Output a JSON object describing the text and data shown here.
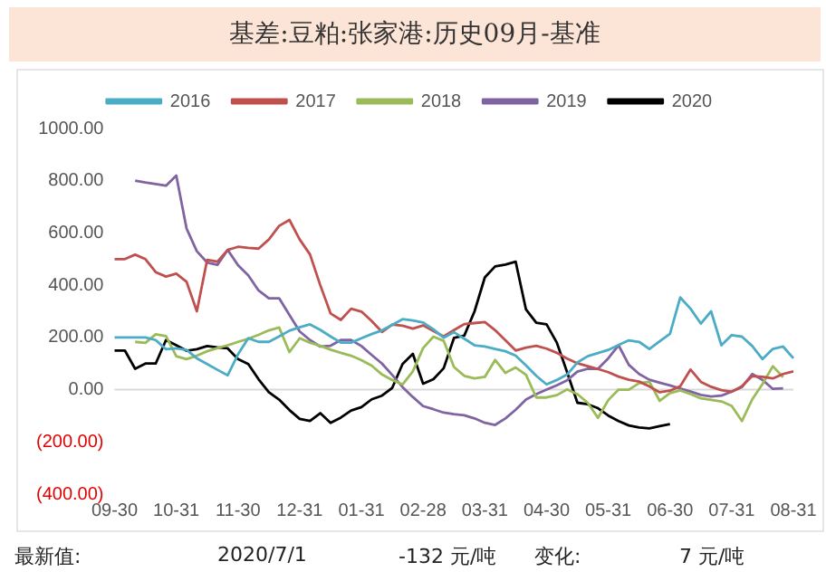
{
  "chart_data": {
    "type": "line",
    "title": "基差:豆粕:张家港:历史09月-基准",
    "categories": [
      "09-30",
      null,
      null,
      null,
      null,
      null,
      "10-31",
      null,
      null,
      null,
      null,
      null,
      "11-30",
      null,
      null,
      null,
      null,
      null,
      "12-31",
      null,
      null,
      null,
      null,
      null,
      "01-31",
      null,
      null,
      null,
      null,
      null,
      "02-28",
      null,
      null,
      null,
      null,
      null,
      "03-31",
      null,
      null,
      null,
      null,
      null,
      "04-30",
      null,
      null,
      null,
      null,
      null,
      "05-31",
      null,
      null,
      null,
      null,
      null,
      "06-30",
      null,
      null,
      null,
      null,
      null,
      "07-31",
      null,
      null,
      null,
      null,
      null,
      "08-31"
    ],
    "ylim": [
      -400,
      1000
    ],
    "yticks": [
      {
        "value": -400,
        "label": "(400.00)"
      },
      {
        "value": -200,
        "label": "(200.00)"
      },
      {
        "value": 0,
        "label": "0.00"
      },
      {
        "value": 200,
        "label": "200.00"
      },
      {
        "value": 400,
        "label": "400.00"
      },
      {
        "value": 600,
        "label": "600.00"
      },
      {
        "value": 800,
        "label": "800.00"
      },
      {
        "value": 1000,
        "label": "1000.00"
      }
    ],
    "grid": false,
    "legend": "top",
    "marker": "none",
    "line_style": "solid",
    "ref_lines": [
      {
        "axis": "y",
        "value": 0,
        "color": "#d9d9d9"
      }
    ],
    "annotations": [
      "最新值:",
      "2020/7/1",
      "-132 元/吨",
      "变化:",
      "7 元/吨"
    ],
    "series": [
      {
        "name": "2016",
        "color": "#4bacc6",
        "values": [
          200,
          200,
          200,
          200,
          190,
          155,
          158,
          152,
          120,
          98,
          76,
          55,
          135,
          197,
          183,
          183,
          204,
          226,
          239,
          250,
          229,
          204,
          180,
          180,
          197,
          213,
          227,
          248,
          270,
          265,
          257,
          231,
          199,
          220,
          195,
          170,
          165,
          156,
          147,
          130,
          93,
          53,
          20,
          37,
          58,
          104,
          128,
          140,
          152,
          171,
          189,
          183,
          156,
          185,
          214,
          353,
          310,
          253,
          300,
          170,
          209,
          203,
          167,
          117,
          156,
          165,
          120
        ]
      },
      {
        "name": "2017",
        "color": "#c0504d",
        "values": [
          500,
          500,
          517,
          500,
          450,
          433,
          444,
          413,
          300,
          497,
          490,
          535,
          547,
          543,
          540,
          575,
          627,
          650,
          575,
          518,
          400,
          292,
          267,
          310,
          299,
          263,
          221,
          249,
          245,
          234,
          246,
          225,
          204,
          228,
          251,
          255,
          259,
          228,
          189,
          150,
          161,
          168,
          157,
          141,
          119,
          101,
          90,
          79,
          67,
          50,
          38,
          31,
          12,
          -10,
          -4,
          13,
          77,
          30,
          11,
          -2,
          -8,
          13,
          52,
          49,
          43,
          60,
          70
        ]
      },
      {
        "name": "2018",
        "color": "#9bbb59",
        "values": [
          null,
          null,
          183,
          179,
          212,
          205,
          128,
          117,
          130,
          147,
          159,
          170,
          183,
          195,
          210,
          227,
          238,
          144,
          197,
          180,
          168,
          153,
          141,
          130,
          113,
          92,
          58,
          37,
          20,
          70,
          159,
          203,
          187,
          87,
          53,
          43,
          49,
          114,
          64,
          85,
          57,
          -30,
          -30,
          -21,
          1,
          -17,
          -50,
          -108,
          -40,
          0,
          0,
          25,
          30,
          -43,
          -13,
          -3,
          -17,
          -33,
          -39,
          -45,
          -62,
          -120,
          -37,
          22,
          90,
          48,
          null
        ]
      },
      {
        "name": "2019",
        "color": "#8064a2",
        "values": [
          null,
          null,
          800,
          793,
          787,
          781,
          820,
          617,
          530,
          487,
          478,
          535,
          477,
          438,
          380,
          350,
          350,
          286,
          223,
          190,
          165,
          168,
          190,
          190,
          167,
          133,
          100,
          56,
          10,
          -28,
          -63,
          -75,
          -88,
          -94,
          -98,
          -110,
          -127,
          -135,
          -110,
          -77,
          -38,
          -17,
          0,
          17,
          36,
          69,
          80,
          80,
          120,
          170,
          95,
          60,
          38,
          27,
          16,
          4,
          -7,
          -20,
          -26,
          -23,
          -7,
          10,
          60,
          37,
          3,
          5,
          null
        ]
      },
      {
        "name": "2020",
        "color": "#000000",
        "values": [
          150,
          150,
          80,
          100,
          100,
          190,
          170,
          149,
          155,
          167,
          162,
          158,
          117,
          98,
          40,
          -10,
          -38,
          -78,
          -112,
          -120,
          -90,
          -127,
          -107,
          -80,
          -67,
          -37,
          -23,
          7,
          98,
          137,
          23,
          40,
          82,
          198,
          207,
          300,
          430,
          472,
          479,
          490,
          307,
          256,
          250,
          180,
          67,
          -50,
          -56,
          -71,
          -99,
          -120,
          -137,
          -145,
          -148,
          -140,
          -132,
          null,
          null,
          null,
          null,
          null,
          null,
          null,
          null,
          null,
          null,
          null,
          null
        ]
      }
    ]
  }
}
